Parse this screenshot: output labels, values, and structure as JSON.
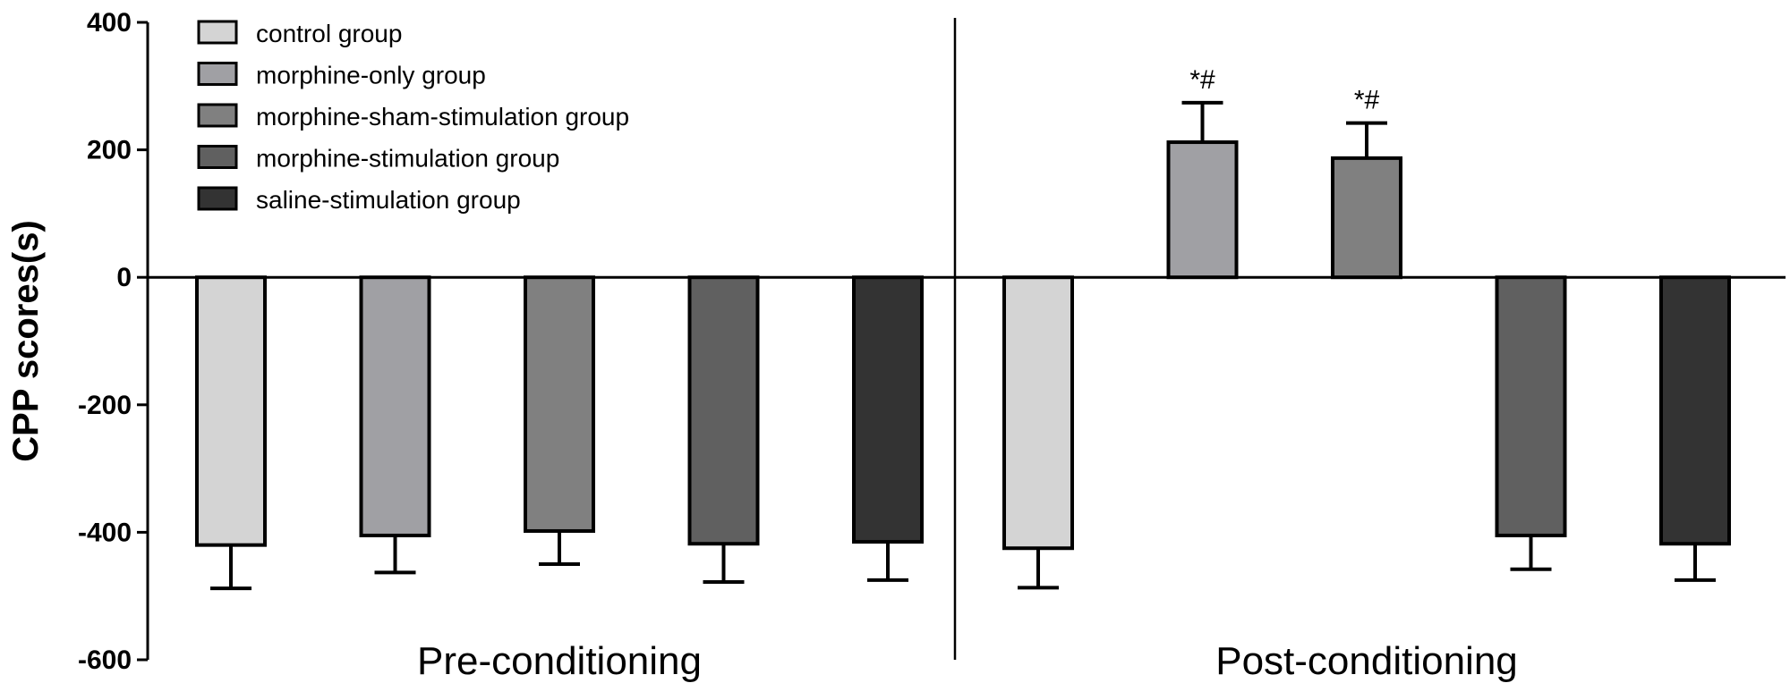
{
  "chart_data": {
    "type": "bar",
    "ylabel": "CPP scores(s)",
    "ylim": [
      -600,
      400
    ],
    "yticks": [
      400,
      200,
      0,
      -200,
      -400,
      -600
    ],
    "grid": false,
    "legend_position": "top-left",
    "categories": [
      "Pre-conditioning",
      "Post-conditioning"
    ],
    "series": [
      {
        "name": "control group",
        "color": "#d4d4d4",
        "values": [
          -420,
          -425
        ],
        "errors": [
          68,
          62
        ],
        "annotations": [
          "",
          ""
        ]
      },
      {
        "name": "morphine-only group",
        "color": "#a0a0a4",
        "values": [
          -405,
          212
        ],
        "errors": [
          58,
          62
        ],
        "annotations": [
          "",
          "*#"
        ]
      },
      {
        "name": "morphine-sham-stimulation  group",
        "color": "#808080",
        "values": [
          -398,
          187
        ],
        "errors": [
          52,
          55
        ],
        "annotations": [
          "",
          "*#"
        ]
      },
      {
        "name": "morphine-stimulation group",
        "color": "#606060",
        "values": [
          -418,
          -405
        ],
        "errors": [
          60,
          53
        ],
        "annotations": [
          "",
          ""
        ]
      },
      {
        "name": "saline-stimulation group",
        "color": "#333333",
        "values": [
          -415,
          -418
        ],
        "errors": [
          60,
          57
        ],
        "annotations": [
          "",
          ""
        ]
      }
    ]
  }
}
